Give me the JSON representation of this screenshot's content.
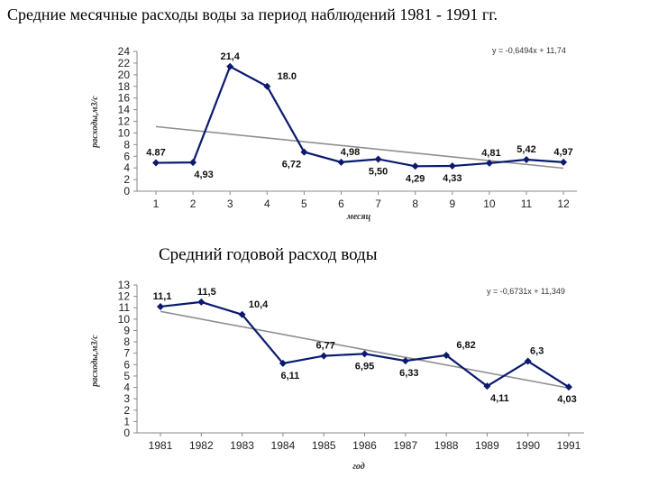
{
  "colors": {
    "series": "#0a1a6e",
    "trend": "#8f8f8f",
    "axis": "#888888"
  },
  "chart_data": [
    {
      "type": "line",
      "title": "Средние месячные расходы воды  за период наблюдений 1981 - 1991 гг.",
      "xlabel": "месяц",
      "ylabel": "расходы,м3/с",
      "categories": [
        "1",
        "2",
        "3",
        "4",
        "5",
        "6",
        "7",
        "8",
        "9",
        "10",
        "11",
        "12"
      ],
      "values": [
        4.87,
        4.93,
        21.4,
        18.0,
        6.72,
        4.98,
        5.5,
        4.29,
        4.33,
        4.81,
        5.42,
        4.97
      ],
      "data_labels": [
        "4.87",
        "4,93",
        "21,4",
        "18.0",
        "6,72",
        "4,98",
        "5,50",
        "4,29",
        "4,33",
        "4,81",
        "5,42",
        "4,97"
      ],
      "ylim": [
        0,
        24
      ],
      "yticks": [
        0,
        2,
        4,
        6,
        8,
        10,
        12,
        14,
        16,
        18,
        20,
        22,
        24
      ],
      "trendline": {
        "equation": "y = -0,6494x + 11,74",
        "slope": -0.6494,
        "intercept": 11.74
      },
      "grid": false
    },
    {
      "type": "line",
      "title": "Средний годовой расход воды",
      "xlabel": "год",
      "ylabel": "расходы,м3/с",
      "categories": [
        "1981",
        "1982",
        "1983",
        "1984",
        "1985",
        "1986",
        "1987",
        "1988",
        "1989",
        "1990",
        "1991"
      ],
      "values": [
        11.1,
        11.5,
        10.4,
        6.11,
        6.77,
        6.95,
        6.33,
        6.82,
        4.11,
        6.3,
        4.03
      ],
      "data_labels": [
        "11,1",
        "11,5",
        "10,4",
        "6,11",
        "6,77",
        "6,95",
        "6,33",
        "6,82",
        "4,11",
        "6,3",
        "4,03"
      ],
      "ylim": [
        0,
        13
      ],
      "yticks": [
        0,
        1,
        2,
        3,
        4,
        5,
        6,
        7,
        8,
        9,
        10,
        11,
        12,
        13
      ],
      "trendline": {
        "equation": "y = -0,6731x + 11,349",
        "slope": -0.6731,
        "intercept": 11.349
      },
      "grid": false
    }
  ]
}
